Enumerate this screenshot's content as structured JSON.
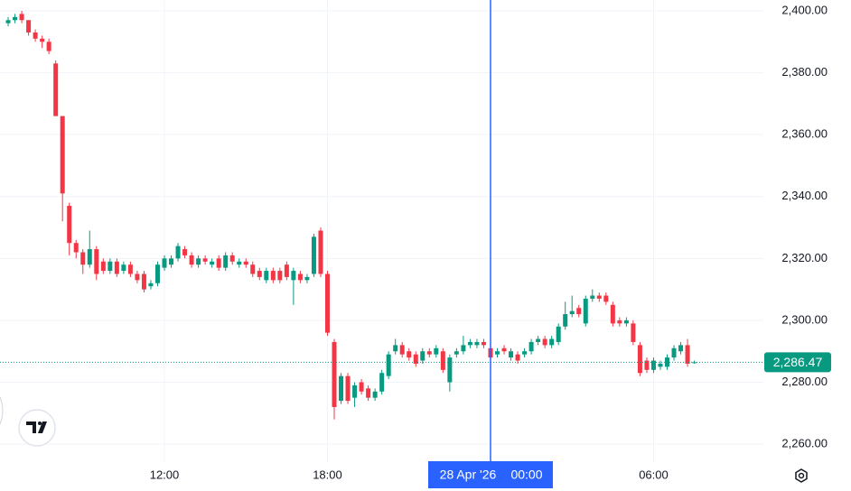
{
  "chart_data": {
    "type": "candlestick",
    "x": [
      6.25,
      6.5,
      6.75,
      7,
      7.25,
      7.5,
      7.75,
      8,
      8.25,
      8.5,
      8.75,
      9,
      9.25,
      9.5,
      9.75,
      10,
      10.25,
      10.5,
      10.75,
      11,
      11.25,
      11.5,
      11.75,
      12,
      12.25,
      12.5,
      12.75,
      13,
      13.25,
      13.5,
      13.75,
      14,
      14.25,
      14.5,
      14.75,
      15,
      15.25,
      15.5,
      15.75,
      16,
      16.25,
      16.5,
      16.75,
      17,
      17.25,
      17.5,
      17.75,
      18,
      18.25,
      18.5,
      18.75,
      19,
      19.25,
      19.5,
      19.75,
      20,
      20.25,
      20.5,
      20.75,
      21,
      21.25,
      21.5,
      21.75,
      22,
      22.25,
      22.5,
      22.75,
      23,
      23.25,
      23.5,
      23.75,
      24,
      24.25,
      24.5,
      24.75,
      25,
      25.25,
      25.5,
      25.75,
      26,
      26.25,
      26.5,
      26.75,
      27,
      27.25,
      27.5,
      27.75,
      28,
      28.25,
      28.5,
      28.75,
      29,
      29.25,
      29.5,
      29.75,
      30,
      30.25,
      30.5,
      30.75,
      31,
      31.25,
      31.5
    ],
    "open": [
      2396,
      2397,
      2399,
      2397,
      2393,
      2391,
      2390,
      2383,
      2366,
      2337,
      2325,
      2322,
      2318,
      2323,
      2319,
      2316,
      2319,
      2316,
      2318,
      2315,
      2315,
      2311,
      2312,
      2317,
      2318,
      2320,
      2323,
      2321,
      2318,
      2320,
      2318,
      2320,
      2317,
      2321,
      2318,
      2319,
      2318,
      2316,
      2313,
      2316,
      2316,
      2318,
      2313,
      2315,
      2313,
      2315,
      2329,
      2315,
      2293,
      2274,
      2282,
      2275,
      2280,
      2278,
      2275,
      2277,
      2282,
      2290,
      2292,
      2290,
      2289,
      2287,
      2290,
      2289,
      2290,
      2280,
      2289,
      2290,
      2292,
      2292,
      2293,
      2291,
      2289,
      2291,
      2288,
      2289,
      2289,
      2290,
      2293,
      2294,
      2292,
      2293,
      2298,
      2302,
      2304,
      2299,
      2307,
      2308,
      2308,
      2305,
      2300,
      2299,
      2299,
      2292,
      2287,
      2284,
      2285,
      2285,
      2288,
      2290,
      2292,
      2286.3
    ],
    "high": [
      2398,
      2399,
      2400,
      2397,
      2394,
      2392,
      2391,
      2384,
      2366,
      2338,
      2326,
      2323,
      2329,
      2324,
      2320,
      2320,
      2320,
      2319,
      2319,
      2316,
      2316,
      2313,
      2319,
      2321,
      2321,
      2325,
      2324,
      2322,
      2321,
      2321,
      2320,
      2321,
      2322,
      2322,
      2320,
      2320,
      2319,
      2317,
      2317,
      2317,
      2317,
      2319,
      2317,
      2316,
      2315,
      2328,
      2330,
      2316,
      2294,
      2283,
      2283,
      2280,
      2281,
      2279,
      2278,
      2284,
      2290,
      2294,
      2293,
      2291,
      2290,
      2291,
      2291,
      2292,
      2291,
      2289,
      2291,
      2295,
      2294,
      2294,
      2294,
      2292,
      2291,
      2292,
      2291,
      2290,
      2291,
      2294,
      2295,
      2295,
      2295,
      2299,
      2306,
      2308,
      2305,
      2308,
      2310,
      2309,
      2309,
      2306,
      2301,
      2301,
      2300,
      2293,
      2288,
      2288,
      2287,
      2289,
      2292,
      2293,
      2294,
      2287
    ],
    "low": [
      2395,
      2396,
      2396,
      2392,
      2390,
      2388,
      2386,
      2366,
      2332,
      2321,
      2320,
      2315,
      2317,
      2313,
      2315,
      2315,
      2314,
      2315,
      2314,
      2312,
      2309,
      2310,
      2311,
      2316,
      2317,
      2319,
      2320,
      2317,
      2317,
      2318,
      2317,
      2316,
      2316,
      2318,
      2317,
      2317,
      2314,
      2313,
      2312,
      2312,
      2312,
      2313,
      2305,
      2312,
      2312,
      2314,
      2314,
      2295,
      2268,
      2273,
      2273,
      2272,
      2276,
      2274,
      2274,
      2276,
      2281,
      2289,
      2288,
      2287,
      2285,
      2286,
      2288,
      2288,
      2283,
      2277,
      2288,
      2289,
      2291,
      2291,
      2291,
      2287,
      2288,
      2289,
      2287,
      2286,
      2288,
      2289,
      2292,
      2291,
      2291,
      2292,
      2297,
      2301,
      2301,
      2298,
      2306,
      2306,
      2305,
      2298,
      2298,
      2298,
      2292,
      2282,
      2283,
      2283,
      2284,
      2284,
      2287,
      2289,
      2285,
      2286
    ],
    "close": [
      2397,
      2398,
      2397,
      2393,
      2391,
      2390,
      2387,
      2366,
      2341,
      2325,
      2322,
      2318,
      2323,
      2315,
      2316,
      2319,
      2315,
      2318,
      2315,
      2313,
      2310,
      2312,
      2318,
      2320,
      2320,
      2324,
      2321,
      2318,
      2320,
      2319,
      2319,
      2317,
      2321,
      2319,
      2319,
      2318,
      2315,
      2314,
      2316,
      2313,
      2313,
      2314,
      2316,
      2313,
      2314,
      2327,
      2315,
      2296,
      2272,
      2282,
      2274,
      2279,
      2277,
      2275,
      2277,
      2283,
      2289,
      2292,
      2289,
      2288,
      2286,
      2290,
      2289,
      2291,
      2284,
      2288,
      2290,
      2292,
      2293,
      2293,
      2292,
      2288,
      2290,
      2290,
      2290,
      2287,
      2290,
      2293,
      2294,
      2292,
      2294,
      2298,
      2302,
      2303,
      2302,
      2307,
      2308,
      2307,
      2306,
      2299,
      2299,
      2300,
      2293,
      2283,
      2284,
      2287,
      2286,
      2288,
      2291,
      2292,
      2286,
      2286.47
    ],
    "up_color": "#089981",
    "down_color": "#f23645",
    "xlim": [
      5.95,
      34.04
    ],
    "xticks": [
      {
        "value": 12,
        "label": "12:00"
      },
      {
        "value": 18,
        "label": "18:00"
      },
      {
        "value": 24,
        "label": "00:00"
      },
      {
        "value": 30,
        "label": "06:00"
      }
    ],
    "ylim": [
      2254.2,
      2403.5
    ],
    "yticks": [
      {
        "value": 2260,
        "label": "2,260.00"
      },
      {
        "value": 2280,
        "label": "2,280.00"
      },
      {
        "value": 2300,
        "label": "2,300.00"
      },
      {
        "value": 2320,
        "label": "2,320.00"
      },
      {
        "value": 2340,
        "label": "2,340.00"
      },
      {
        "value": 2360,
        "label": "2,360.00"
      },
      {
        "value": 2380,
        "label": "2,380.00"
      },
      {
        "value": 2400,
        "label": "2,400.00"
      }
    ],
    "grid": true,
    "last_price": {
      "value": 2286.47,
      "label": "2,286.47"
    },
    "crosshair": {
      "x": 24,
      "label": "28 Apr '26",
      "color": "#2962ff"
    }
  }
}
